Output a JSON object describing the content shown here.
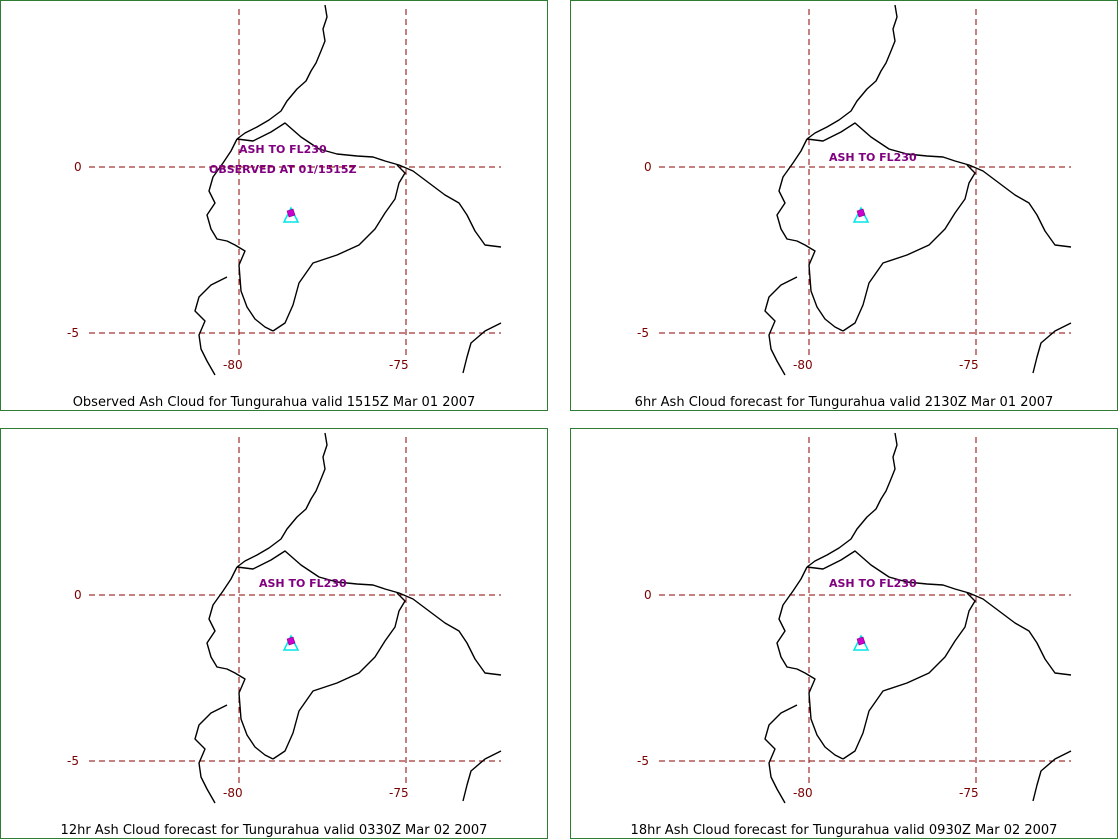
{
  "panels": [
    {
      "caption": "Observed Ash Cloud for Tungurahua valid 1515Z Mar 01 2007",
      "annotations": [
        "ASH TO FL230",
        "OBSERVED AT 01/1515Z"
      ]
    },
    {
      "caption": "6hr Ash Cloud forecast for Tungurahua valid 2130Z Mar 01 2007",
      "annotations": [
        "ASH TO FL230"
      ]
    },
    {
      "caption": "12hr Ash Cloud forecast for Tungurahua valid 0330Z Mar 02 2007",
      "annotations": [
        "ASH TO FL230"
      ]
    },
    {
      "caption": "18hr Ash Cloud forecast for Tungurahua valid 0930Z Mar 02 2007",
      "annotations": [
        "ASH TO FL230"
      ]
    }
  ],
  "grid": {
    "lat_labels": [
      "0",
      "-5"
    ],
    "lon_labels": [
      "-80",
      "-75"
    ]
  },
  "colors": {
    "border": "#2e7d32",
    "gridline": "#8b0000",
    "coastline": "#000000",
    "annotation": "#800080",
    "volcano": "#00e5e5",
    "ash": "#cc00cc"
  }
}
